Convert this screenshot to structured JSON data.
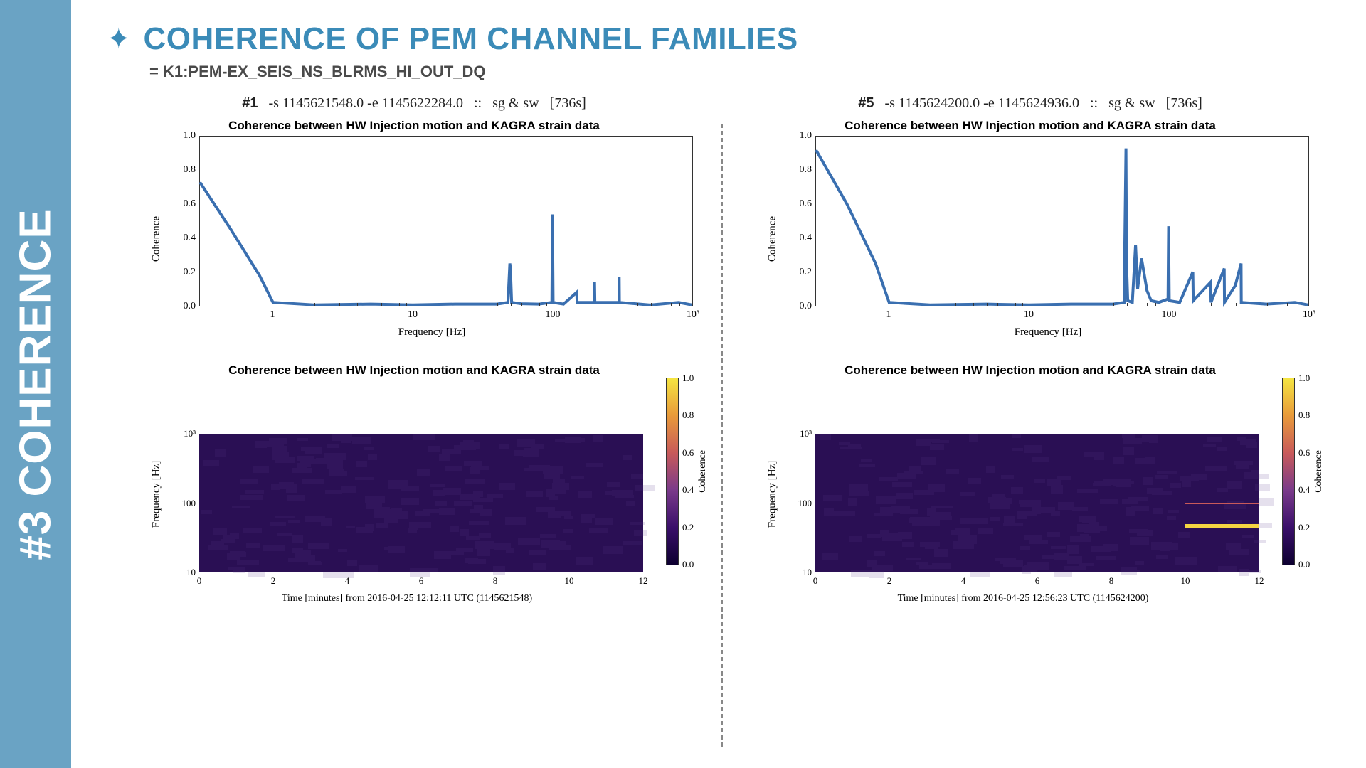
{
  "sidebar": {
    "label": "#3 COHERENCE"
  },
  "header": {
    "title": "COHERENCE OF PEM CHANNEL FAMILIES",
    "subtitle": "= K1:PEM-EX_SEIS_NS_BLRMS_HI_OUT_DQ"
  },
  "colors": {
    "accent": "#3b8bb8",
    "sidebar_bg": "#6aa3c4",
    "line": "#3a6fb0",
    "spec_bg": "#2a0f54",
    "highlight": "#f5d542",
    "grid": "#333333",
    "background": "#ffffff"
  },
  "typography": {
    "title_fontsize": 44,
    "subtitle_fontsize": 22,
    "chart_title_fontsize": 17,
    "axis_label_fontsize": 15,
    "tick_fontsize": 14,
    "sidebar_fontsize": 62
  },
  "layout": {
    "aspect": "1920x1080",
    "panels": 2,
    "divider_style": "dashed",
    "line_chart_box": {
      "border_color": "#333333",
      "border_width": 1
    }
  },
  "panels": [
    {
      "id": "panel1",
      "header_num": "#1",
      "header_args": "-s 1145621548.0 -e 1145622284.0",
      "header_mode": "sg & sw",
      "header_dur": "[736s]",
      "line": {
        "type": "line",
        "title": "Coherence between HW Injection motion and KAGRA strain data",
        "xlabel": "Frequency [Hz]",
        "ylabel": "Coherence",
        "xscale": "log",
        "xlim": [
          0.3,
          1000
        ],
        "ylim": [
          0,
          1
        ],
        "ytick_step": 0.2,
        "yticks": [
          0.0,
          0.2,
          0.4,
          0.6,
          0.8,
          1.0
        ],
        "xticks": [
          1,
          10,
          100,
          1000
        ],
        "xtick_labels": [
          "1",
          "10",
          "100",
          "10³"
        ],
        "line_color": "#3a6fb0",
        "line_width": 1.2,
        "background_color": "#ffffff",
        "grid": false,
        "series": [
          {
            "x": 0.3,
            "y": 0.73
          },
          {
            "x": 0.5,
            "y": 0.45
          },
          {
            "x": 0.8,
            "y": 0.18
          },
          {
            "x": 1.0,
            "y": 0.02
          },
          {
            "x": 2,
            "y": 0.005
          },
          {
            "x": 5,
            "y": 0.01
          },
          {
            "x": 10,
            "y": 0.005
          },
          {
            "x": 20,
            "y": 0.01
          },
          {
            "x": 40,
            "y": 0.01
          },
          {
            "x": 48,
            "y": 0.02
          },
          {
            "x": 49.5,
            "y": 0.25
          },
          {
            "x": 50,
            "y": 0.22
          },
          {
            "x": 51,
            "y": 0.02
          },
          {
            "x": 60,
            "y": 0.012
          },
          {
            "x": 80,
            "y": 0.01
          },
          {
            "x": 99,
            "y": 0.02
          },
          {
            "x": 100,
            "y": 0.54
          },
          {
            "x": 101,
            "y": 0.02
          },
          {
            "x": 120,
            "y": 0.01
          },
          {
            "x": 149,
            "y": 0.08
          },
          {
            "x": 150,
            "y": 0.02
          },
          {
            "x": 199,
            "y": 0.02
          },
          {
            "x": 200,
            "y": 0.14
          },
          {
            "x": 201,
            "y": 0.02
          },
          {
            "x": 299,
            "y": 0.02
          },
          {
            "x": 300,
            "y": 0.17
          },
          {
            "x": 301,
            "y": 0.02
          },
          {
            "x": 500,
            "y": 0.005
          },
          {
            "x": 800,
            "y": 0.02
          },
          {
            "x": 1000,
            "y": 0.005
          }
        ]
      },
      "spec": {
        "type": "spectrogram",
        "title": "Coherence between HW Injection motion and KAGRA strain data",
        "xlabel": "Time [minutes] from 2016-04-25 12:12:11 UTC (1145621548)",
        "ylabel": "Frequency [Hz]",
        "clabel": "Coherence",
        "colormap": "inferno",
        "colormap_stops": [
          "#0d0030",
          "#3a0f6a",
          "#7a3a8a",
          "#c85a5a",
          "#e89a3a",
          "#f5e542"
        ],
        "xlim": [
          0,
          12
        ],
        "ylim": [
          10,
          1000
        ],
        "yscale": "log",
        "clim": [
          0,
          1
        ],
        "xticks": [
          0,
          2,
          4,
          6,
          8,
          10,
          12
        ],
        "yticks": [
          10,
          100,
          1000
        ],
        "ytick_labels": [
          "10",
          "100",
          "10³"
        ],
        "cticks": [
          0.0,
          0.2,
          0.4,
          0.6,
          0.8,
          1.0
        ],
        "background_value": 0.05,
        "noise_cell_size": 12,
        "noise_opacity": 0.15,
        "highlights": []
      }
    },
    {
      "id": "panel5",
      "header_num": "#5",
      "header_args": "-s 1145624200.0 -e 1145624936.0",
      "header_mode": "sg & sw",
      "header_dur": "[736s]",
      "line": {
        "type": "line",
        "title": "Coherence between HW Injection motion and KAGRA strain data",
        "xlabel": "Frequency [Hz]",
        "ylabel": "Coherence",
        "xscale": "log",
        "xlim": [
          0.3,
          1000
        ],
        "ylim": [
          0,
          1
        ],
        "ytick_step": 0.2,
        "yticks": [
          0.0,
          0.2,
          0.4,
          0.6,
          0.8,
          1.0
        ],
        "xticks": [
          1,
          10,
          100,
          1000
        ],
        "xtick_labels": [
          "1",
          "10",
          "100",
          "10³"
        ],
        "line_color": "#3a6fb0",
        "line_width": 1.2,
        "background_color": "#ffffff",
        "grid": false,
        "series": [
          {
            "x": 0.3,
            "y": 0.92
          },
          {
            "x": 0.5,
            "y": 0.6
          },
          {
            "x": 0.8,
            "y": 0.25
          },
          {
            "x": 1.0,
            "y": 0.02
          },
          {
            "x": 2,
            "y": 0.005
          },
          {
            "x": 5,
            "y": 0.01
          },
          {
            "x": 10,
            "y": 0.005
          },
          {
            "x": 20,
            "y": 0.01
          },
          {
            "x": 40,
            "y": 0.01
          },
          {
            "x": 48,
            "y": 0.02
          },
          {
            "x": 49.5,
            "y": 0.93
          },
          {
            "x": 50,
            "y": 0.25
          },
          {
            "x": 51,
            "y": 0.03
          },
          {
            "x": 55,
            "y": 0.02
          },
          {
            "x": 58,
            "y": 0.36
          },
          {
            "x": 60,
            "y": 0.1
          },
          {
            "x": 64,
            "y": 0.28
          },
          {
            "x": 70,
            "y": 0.09
          },
          {
            "x": 75,
            "y": 0.03
          },
          {
            "x": 85,
            "y": 0.02
          },
          {
            "x": 99,
            "y": 0.04
          },
          {
            "x": 100,
            "y": 0.47
          },
          {
            "x": 101,
            "y": 0.03
          },
          {
            "x": 120,
            "y": 0.02
          },
          {
            "x": 149,
            "y": 0.2
          },
          {
            "x": 150,
            "y": 0.03
          },
          {
            "x": 200,
            "y": 0.14
          },
          {
            "x": 201,
            "y": 0.02
          },
          {
            "x": 250,
            "y": 0.22
          },
          {
            "x": 251,
            "y": 0.02
          },
          {
            "x": 300,
            "y": 0.12
          },
          {
            "x": 330,
            "y": 0.25
          },
          {
            "x": 331,
            "y": 0.02
          },
          {
            "x": 500,
            "y": 0.01
          },
          {
            "x": 800,
            "y": 0.02
          },
          {
            "x": 1000,
            "y": 0.005
          }
        ]
      },
      "spec": {
        "type": "spectrogram",
        "title": "Coherence between HW Injection motion and KAGRA strain data",
        "xlabel": "Time [minutes] from 2016-04-25 12:56:23 UTC (1145624200)",
        "ylabel": "Frequency [Hz]",
        "clabel": "Coherence",
        "colormap": "inferno",
        "colormap_stops": [
          "#0d0030",
          "#3a0f6a",
          "#7a3a8a",
          "#c85a5a",
          "#e89a3a",
          "#f5e542"
        ],
        "xlim": [
          0,
          12
        ],
        "ylim": [
          10,
          1000
        ],
        "yscale": "log",
        "clim": [
          0,
          1
        ],
        "xticks": [
          0,
          2,
          4,
          6,
          8,
          10,
          12
        ],
        "yticks": [
          10,
          100,
          1000
        ],
        "ytick_labels": [
          "10",
          "100",
          "10³"
        ],
        "cticks": [
          0.0,
          0.2,
          0.4,
          0.6,
          0.8,
          1.0
        ],
        "background_value": 0.05,
        "noise_cell_size": 12,
        "noise_opacity": 0.15,
        "highlights": [
          {
            "t_start": 10,
            "t_end": 12,
            "f": 50,
            "color": "#f5d542",
            "thickness": 3
          },
          {
            "t_start": 10,
            "t_end": 12,
            "f": 100,
            "color": "#c85a5a",
            "thickness": 1
          }
        ]
      }
    }
  ]
}
